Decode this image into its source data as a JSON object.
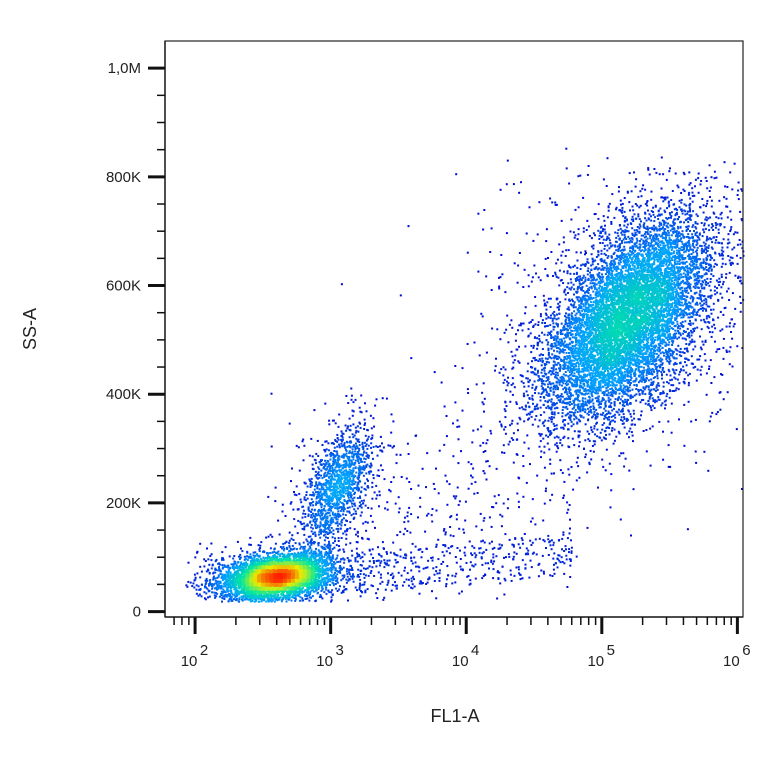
{
  "chart_data": {
    "type": "scatter",
    "subtype": "flow-cytometry density dot plot",
    "title": "",
    "xlabel": "FL1-A",
    "ylabel": "SS-A",
    "x_scale": "log",
    "xlim": [
      60,
      1100000
    ],
    "ylim": [
      -10000,
      1050000
    ],
    "grid": false,
    "legend": "none",
    "x_major_ticks": [
      {
        "value": 100,
        "base": "10",
        "exp": "2"
      },
      {
        "value": 1000,
        "base": "10",
        "exp": "3"
      },
      {
        "value": 10000,
        "base": "10",
        "exp": "4"
      },
      {
        "value": 100000,
        "base": "10",
        "exp": "5"
      },
      {
        "value": 1000000,
        "base": "10",
        "exp": "6"
      }
    ],
    "y_major_ticks": [
      {
        "value": 0,
        "label": "0"
      },
      {
        "value": 200000,
        "label": "200K"
      },
      {
        "value": 400000,
        "label": "400K"
      },
      {
        "value": 600000,
        "label": "600K"
      },
      {
        "value": 800000,
        "label": "800K"
      },
      {
        "value": 1000000,
        "label": "1,0M"
      }
    ],
    "density_colormap": [
      "#0000d0",
      "#00a0ff",
      "#00e8a0",
      "#e8f000",
      "#ff2000"
    ],
    "populations": [
      {
        "center_x": 400,
        "center_y": 65000,
        "count": 5200
      },
      {
        "center_x": 1100,
        "center_y": 230000,
        "count": 1400
      },
      {
        "center_x": 150000,
        "center_y": 540000,
        "count": 9500
      },
      {
        "center_x": 15000,
        "center_y": 250000,
        "count": 600
      }
    ]
  }
}
